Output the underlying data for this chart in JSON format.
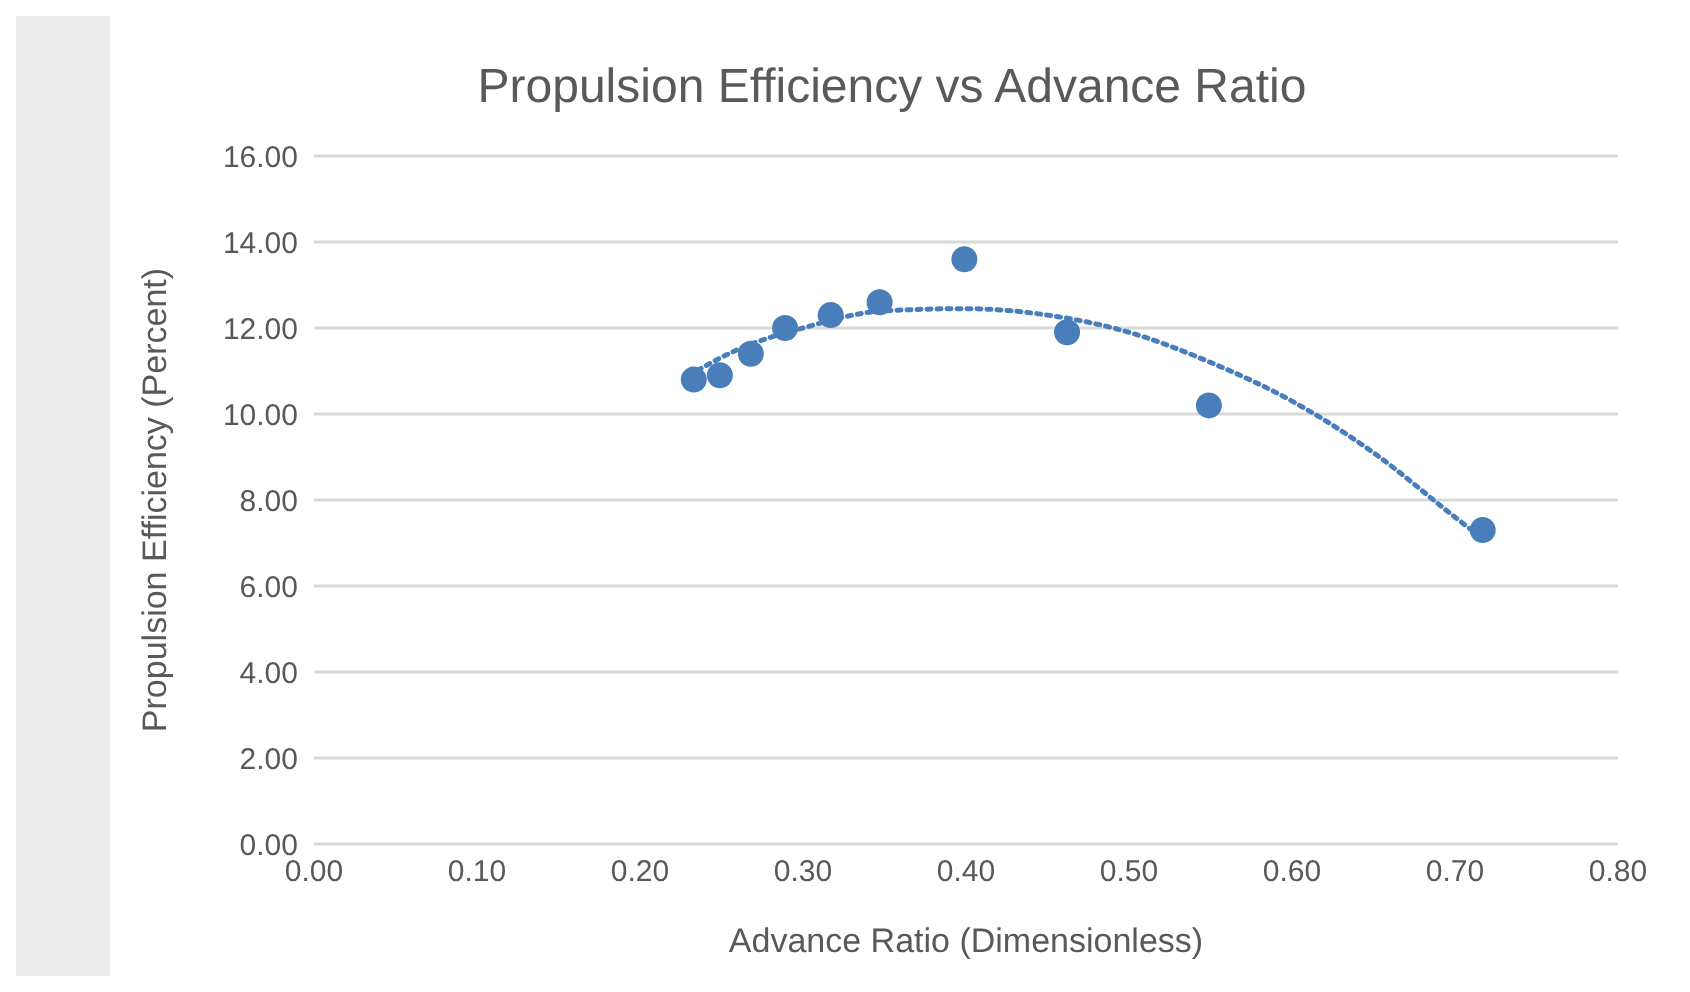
{
  "chart_data": {
    "type": "scatter",
    "title": "Propulsion Efficiency vs Advance Ratio",
    "xlabel": "Advance Ratio (Dimensionless)",
    "ylabel": "Propulsion Efficiency (Percent)",
    "xlim": [
      0,
      0.8
    ],
    "xticks": [
      {
        "value": 0,
        "label": "0.00"
      },
      {
        "value": 0.1,
        "label": "0.10"
      },
      {
        "value": 0.2,
        "label": "0.20"
      },
      {
        "value": 0.3,
        "label": "0.30"
      },
      {
        "value": 0.4,
        "label": "0.40"
      },
      {
        "value": 0.5,
        "label": "0.50"
      },
      {
        "value": 0.6,
        "label": "0.60"
      },
      {
        "value": 0.7,
        "label": "0.70"
      },
      {
        "value": 0.8,
        "label": "0.80"
      }
    ],
    "ylim": [
      0,
      16
    ],
    "yticks": [
      {
        "value": 0,
        "label": "0.00"
      },
      {
        "value": 2,
        "label": "2.00"
      },
      {
        "value": 4,
        "label": "4.00"
      },
      {
        "value": 6,
        "label": "6.00"
      },
      {
        "value": 8,
        "label": "8.00"
      },
      {
        "value": 10,
        "label": "10.00"
      },
      {
        "value": 12,
        "label": "12.00"
      },
      {
        "value": 14,
        "label": "14.00"
      },
      {
        "value": 16,
        "label": "16.00"
      }
    ],
    "grid": "y",
    "series": [
      {
        "color": "#4a7ebb",
        "marker": "circle",
        "x": [
          0.233,
          0.249,
          0.268,
          0.289,
          0.317,
          0.347,
          0.399,
          0.462,
          0.549,
          0.717
        ],
        "values": [
          10.8,
          10.9,
          11.4,
          12.0,
          12.3,
          12.6,
          13.6,
          11.9,
          10.2,
          7.3
        ]
      },
      {
        "type": "line",
        "color": "#4a7ebb",
        "marker": "none",
        "line_style": "dotted",
        "x": [
          0.23,
          0.26,
          0.3,
          0.35,
          0.4,
          0.45,
          0.5,
          0.55,
          0.6,
          0.65,
          0.7,
          0.717
        ],
        "values": [
          10.9,
          11.5,
          12.0,
          12.4,
          12.45,
          12.3,
          11.9,
          11.2,
          10.3,
          9.1,
          7.6,
          7.1
        ]
      }
    ]
  }
}
